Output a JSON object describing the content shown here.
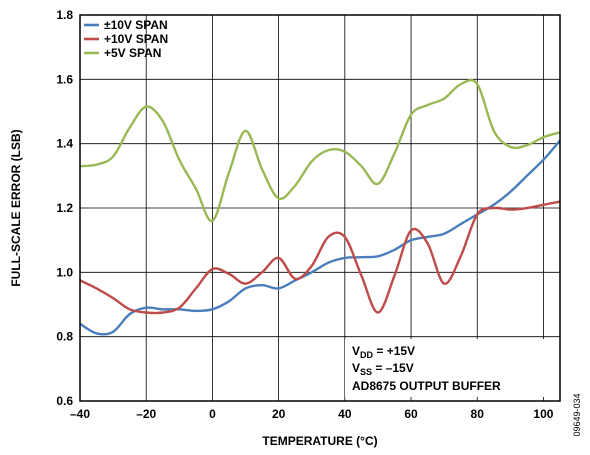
{
  "chart_data": {
    "type": "line",
    "xlabel": "TEMPERATURE (°C)",
    "ylabel": "FULL-SCALE ERROR (LSB)",
    "xlim": [
      -40,
      105
    ],
    "ylim": [
      0.6,
      1.8
    ],
    "x_ticks": [
      -40,
      -20,
      0,
      20,
      40,
      60,
      80,
      100
    ],
    "x_tick_labels": [
      "–40",
      "–20",
      "0",
      "20",
      "40",
      "60",
      "80",
      "100"
    ],
    "y_ticks": [
      0.6,
      0.8,
      1.0,
      1.2,
      1.4,
      1.6,
      1.8
    ],
    "y_tick_labels": [
      "0.6",
      "0.8",
      "1.0",
      "1.2",
      "1.4",
      "1.6",
      "1.8"
    ],
    "grid": true,
    "legend_position": "top-left",
    "series": [
      {
        "name": "±10V SPAN",
        "color": "#4a7ebb",
        "x": [
          -40,
          -35,
          -30,
          -25,
          -20,
          -15,
          -10,
          -5,
          0,
          5,
          10,
          15,
          20,
          25,
          30,
          35,
          40,
          45,
          50,
          55,
          60,
          65,
          70,
          75,
          80,
          85,
          90,
          95,
          100,
          105
        ],
        "y": [
          0.84,
          0.81,
          0.815,
          0.87,
          0.89,
          0.885,
          0.885,
          0.88,
          0.885,
          0.91,
          0.95,
          0.96,
          0.95,
          0.975,
          1.0,
          1.03,
          1.045,
          1.047,
          1.05,
          1.07,
          1.1,
          1.11,
          1.12,
          1.15,
          1.18,
          1.21,
          1.25,
          1.3,
          1.35,
          1.41
        ]
      },
      {
        "name": "+10V SPAN",
        "color": "#be4b48",
        "x": [
          -40,
          -35,
          -30,
          -25,
          -20,
          -15,
          -10,
          -5,
          0,
          5,
          10,
          15,
          20,
          25,
          30,
          35,
          40,
          45,
          50,
          55,
          60,
          65,
          70,
          75,
          80,
          85,
          90,
          95,
          100,
          105
        ],
        "y": [
          0.975,
          0.95,
          0.92,
          0.885,
          0.875,
          0.875,
          0.89,
          0.95,
          1.01,
          0.995,
          0.965,
          1.0,
          1.045,
          0.98,
          1.02,
          1.11,
          1.11,
          0.99,
          0.875,
          0.99,
          1.13,
          1.09,
          0.965,
          1.05,
          1.18,
          1.2,
          1.195,
          1.2,
          1.21,
          1.22
        ]
      },
      {
        "name": "+5V SPAN",
        "color": "#98b954",
        "x": [
          -40,
          -35,
          -30,
          -25,
          -20,
          -15,
          -10,
          -5,
          0,
          5,
          10,
          15,
          20,
          25,
          30,
          35,
          40,
          45,
          50,
          55,
          60,
          65,
          70,
          75,
          80,
          85,
          90,
          95,
          100,
          105
        ],
        "y": [
          1.33,
          1.335,
          1.36,
          1.45,
          1.515,
          1.47,
          1.35,
          1.26,
          1.16,
          1.31,
          1.44,
          1.32,
          1.23,
          1.27,
          1.345,
          1.38,
          1.375,
          1.33,
          1.275,
          1.37,
          1.49,
          1.52,
          1.54,
          1.585,
          1.585,
          1.44,
          1.39,
          1.395,
          1.42,
          1.435
        ]
      }
    ],
    "annotations": [
      "V",
      "DD",
      " = +15V",
      "V",
      "SS",
      " = –15V",
      "AD8675 OUTPUT BUFFER"
    ],
    "figure_id": "09649-034"
  }
}
